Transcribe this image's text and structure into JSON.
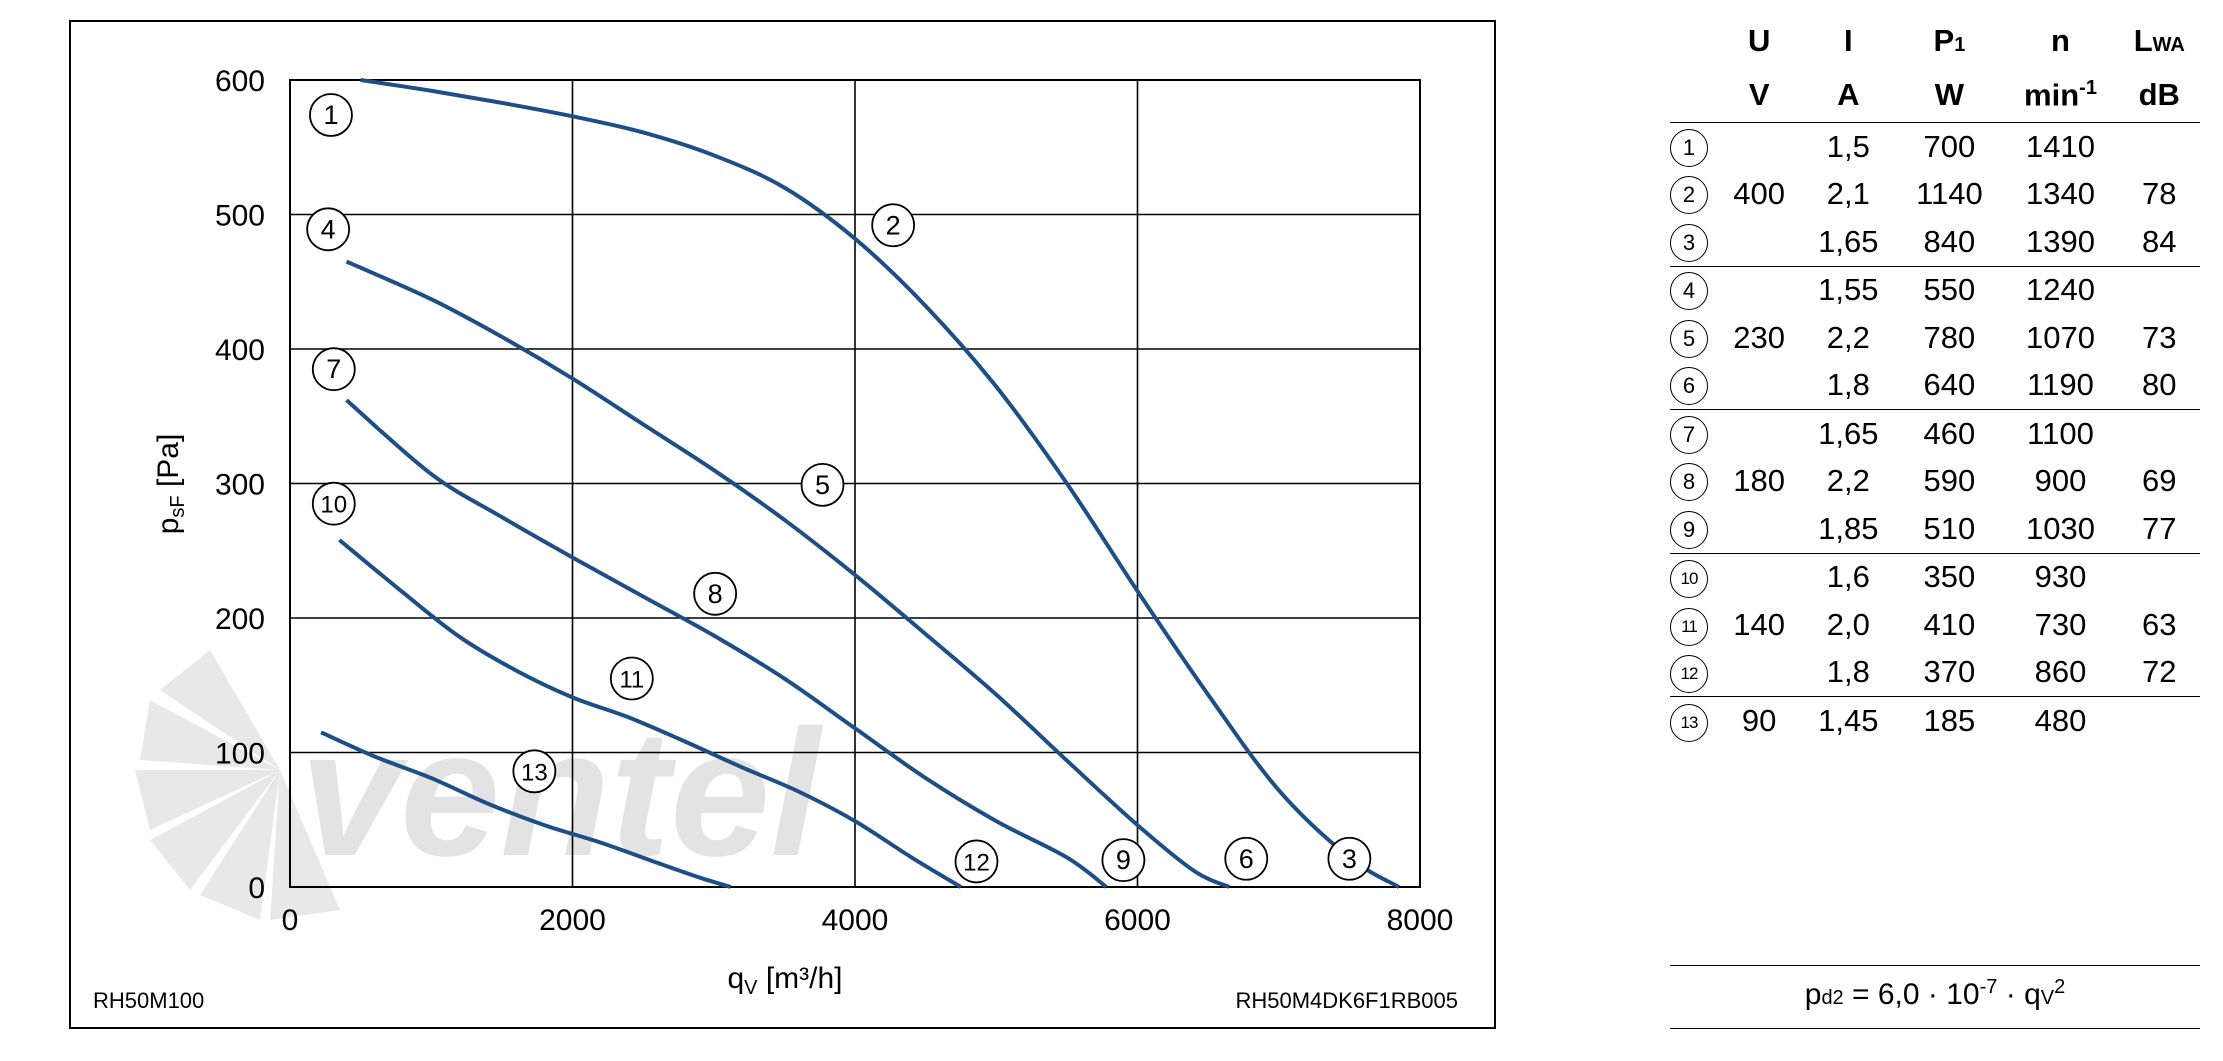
{
  "chart_data": {
    "type": "line",
    "xlabel_main": "q",
    "xlabel_sub": "V",
    "xlabel_unit": " [m³/h]",
    "ylabel_main": "p",
    "ylabel_sub": "sF",
    "ylabel_unit": " [Pa]",
    "xlim": [
      0,
      8000
    ],
    "ylim": [
      0,
      600
    ],
    "xticks": [
      0,
      2000,
      4000,
      6000,
      8000
    ],
    "yticks": [
      0,
      100,
      200,
      300,
      400,
      500,
      600
    ],
    "grid": true,
    "line_color": "#1d4f86",
    "footer_left": "RH50M100",
    "footer_right": "RH50M4DK6F1RB005",
    "watermark": "ventel",
    "series": [
      {
        "label": "2",
        "x": [
          500,
          1000,
          1500,
          2000,
          2500,
          3000,
          3500,
          4000,
          4500,
          5000,
          5500,
          6000,
          6500,
          7000,
          7500,
          7850
        ],
        "y": [
          600,
          592,
          583,
          573,
          561,
          544,
          520,
          482,
          432,
          372,
          300,
          220,
          143,
          72,
          22,
          0
        ]
      },
      {
        "label": "5",
        "x": [
          400,
          1000,
          1500,
          2000,
          2500,
          3000,
          3500,
          4000,
          4500,
          5000,
          5500,
          6000,
          6400,
          6650
        ],
        "y": [
          465,
          437,
          409,
          378,
          344,
          310,
          273,
          232,
          188,
          143,
          94,
          46,
          12,
          0
        ]
      },
      {
        "label": "8",
        "x": [
          400,
          1000,
          1500,
          2000,
          2500,
          3000,
          3500,
          4000,
          4500,
          5000,
          5500,
          5780
        ],
        "y": [
          362,
          307,
          275,
          245,
          216,
          187,
          155,
          118,
          81,
          49,
          22,
          0
        ]
      },
      {
        "label": "11",
        "x": [
          350,
          800,
          1200,
          1600,
          2000,
          2400,
          2800,
          3200,
          3600,
          4000,
          4400,
          4750
        ],
        "y": [
          258,
          219,
          186,
          161,
          141,
          126,
          108,
          89,
          71,
          49,
          22,
          0
        ]
      },
      {
        "label": "13",
        "x": [
          220,
          600,
          1000,
          1400,
          1800,
          2200,
          2600,
          2900,
          3120
        ],
        "y": [
          115,
          97,
          81,
          62,
          46,
          33,
          18,
          7,
          0
        ]
      }
    ],
    "curve_labels": [
      {
        "text": "1",
        "x": 290,
        "y": 574
      },
      {
        "text": "4",
        "x": 270,
        "y": 489
      },
      {
        "text": "7",
        "x": 310,
        "y": 385
      },
      {
        "text": "10",
        "x": 310,
        "y": 285
      },
      {
        "text": "2",
        "x": 4270,
        "y": 492
      },
      {
        "text": "5",
        "x": 3770,
        "y": 299
      },
      {
        "text": "8",
        "x": 3010,
        "y": 218
      },
      {
        "text": "11",
        "x": 2420,
        "y": 155
      },
      {
        "text": "13",
        "x": 1730,
        "y": 86
      },
      {
        "text": "12",
        "x": 4860,
        "y": 19
      },
      {
        "text": "9",
        "x": 5900,
        "y": 20
      },
      {
        "text": "6",
        "x": 6770,
        "y": 21
      },
      {
        "text": "3",
        "x": 7500,
        "y": 21
      }
    ]
  },
  "table": {
    "headers": [
      "U",
      "I",
      "P",
      "n",
      "L"
    ],
    "header_subs": [
      "",
      "",
      "1",
      "",
      "WA"
    ],
    "units": [
      "V",
      "A",
      "W",
      "min",
      "dB"
    ],
    "unit_sup_n": "-1",
    "rows": [
      {
        "id": "1",
        "U": "",
        "I": "1,5",
        "P": "700",
        "n": "1410",
        "L": ""
      },
      {
        "id": "2",
        "U": "400",
        "I": "2,1",
        "P": "1140",
        "n": "1340",
        "L": "78"
      },
      {
        "id": "3",
        "U": "",
        "I": "1,65",
        "P": "840",
        "n": "1390",
        "L": "84"
      },
      {
        "id": "4",
        "U": "",
        "I": "1,55",
        "P": "550",
        "n": "1240",
        "L": ""
      },
      {
        "id": "5",
        "U": "230",
        "I": "2,2",
        "P": "780",
        "n": "1070",
        "L": "73"
      },
      {
        "id": "6",
        "U": "",
        "I": "1,8",
        "P": "640",
        "n": "1190",
        "L": "80"
      },
      {
        "id": "7",
        "U": "",
        "I": "1,65",
        "P": "460",
        "n": "1100",
        "L": ""
      },
      {
        "id": "8",
        "U": "180",
        "I": "2,2",
        "P": "590",
        "n": "900",
        "L": "69"
      },
      {
        "id": "9",
        "U": "",
        "I": "1,85",
        "P": "510",
        "n": "1030",
        "L": "77"
      },
      {
        "id": "10",
        "U": "",
        "I": "1,6",
        "P": "350",
        "n": "930",
        "L": ""
      },
      {
        "id": "11",
        "U": "140",
        "I": "2,0",
        "P": "410",
        "n": "730",
        "L": "63"
      },
      {
        "id": "12",
        "U": "",
        "I": "1,8",
        "P": "370",
        "n": "860",
        "L": "72"
      },
      {
        "id": "13",
        "U": "90",
        "I": "1,45",
        "P": "185",
        "n": "480",
        "L": ""
      }
    ]
  },
  "formula": {
    "p": "p",
    "p_sub": "d2",
    "eq": " = 6,0 · 10",
    "exp": "-7",
    "dot": " · q",
    "q_sub": "V",
    "q_sup": "2"
  }
}
